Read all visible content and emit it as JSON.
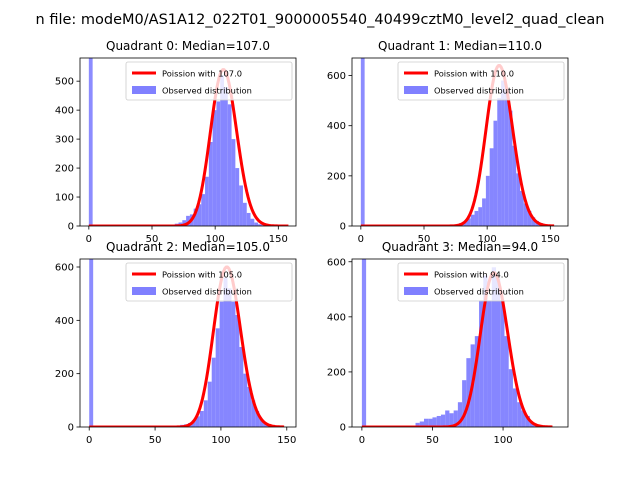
{
  "suptitle": "n file: modeM0/AS1A12_022T01_9000005540_40499cztM0_level2_quad_clean",
  "colors": {
    "hist": "#8080ff",
    "line": "#ff0000",
    "spike": "#8c8cff"
  },
  "chart_data": [
    {
      "type": "histogram",
      "title": "Quadrant 0: Median=107.0",
      "xlim": [
        -7,
        164
      ],
      "ylim": [
        0,
        580
      ],
      "xticks": [
        0,
        50,
        100,
        150
      ],
      "yticks": [
        0,
        100,
        200,
        300,
        400,
        500
      ],
      "legend": {
        "placement": "top-right",
        "line_label": "Poission with 107.0",
        "hist_label": "Observed distribution"
      },
      "poisson_mean": 107.0,
      "poisson_scale": 540,
      "poisson_xmax": 158,
      "spike": {
        "x": 0,
        "value": 580
      },
      "bins": {
        "start": 56,
        "width": 3,
        "counts": [
          3,
          3,
          2,
          5,
          8,
          12,
          20,
          35,
          40,
          60,
          75,
          110,
          170,
          290,
          400,
          430,
          520,
          480,
          420,
          300,
          200,
          140,
          80,
          45,
          25,
          12,
          6,
          3,
          2,
          1,
          1,
          1,
          1
        ]
      }
    },
    {
      "type": "histogram",
      "title": "Quadrant 1: Median=110.0",
      "xlim": [
        -7,
        164
      ],
      "ylim": [
        0,
        670
      ],
      "xticks": [
        0,
        50,
        100,
        150
      ],
      "yticks": [
        0,
        200,
        400,
        600
      ],
      "legend": {
        "placement": "top-right",
        "line_label": "Poission with 110.0",
        "hist_label": "Observed distribution"
      },
      "poisson_mean": 110.0,
      "poisson_scale": 640,
      "poisson_xmax": 153,
      "spike": {
        "x": 0,
        "value": 670
      },
      "bins": {
        "start": 66,
        "width": 3,
        "counts": [
          3,
          4,
          5,
          8,
          12,
          18,
          30,
          45,
          60,
          75,
          110,
          200,
          310,
          420,
          510,
          580,
          540,
          460,
          320,
          210,
          140,
          90,
          60,
          35,
          20,
          12,
          6,
          3,
          2,
          1
        ]
      }
    },
    {
      "type": "histogram",
      "title": "Quadrant 2: Median=105.0",
      "xlim": [
        -7,
        157
      ],
      "ylim": [
        0,
        630
      ],
      "xticks": [
        0,
        50,
        100,
        150
      ],
      "yticks": [
        0,
        200,
        400,
        600
      ],
      "legend": {
        "placement": "top-right",
        "line_label": "Poission with 105.0",
        "hist_label": "Observed distribution"
      },
      "poisson_mean": 105.0,
      "poisson_scale": 600,
      "poisson_xmax": 148,
      "spike": {
        "x": 0,
        "value": 630
      },
      "bins": {
        "start": 60,
        "width": 3,
        "counts": [
          2,
          3,
          5,
          8,
          10,
          15,
          25,
          40,
          60,
          100,
          170,
          260,
          370,
          470,
          560,
          520,
          470,
          420,
          300,
          200,
          150,
          100,
          60,
          30,
          15,
          8,
          4,
          2
        ]
      }
    },
    {
      "type": "histogram",
      "title": "Quadrant 3: Median=94.0",
      "xlim": [
        -7,
        146
      ],
      "ylim": [
        0,
        610
      ],
      "xticks": [
        0,
        50,
        100
      ],
      "yticks": [
        0,
        200,
        400,
        600
      ],
      "legend": {
        "placement": "top-right",
        "line_label": "Poission with 94.0",
        "hist_label": "Observed distribution"
      },
      "poisson_mean": 94.0,
      "poisson_scale": 560,
      "poisson_xmax": 135,
      "spike": {
        "x": 0,
        "value": 610
      },
      "bins": {
        "start": 38,
        "width": 3,
        "counts": [
          15,
          20,
          30,
          30,
          35,
          40,
          45,
          60,
          50,
          60,
          90,
          170,
          250,
          300,
          330,
          460,
          550,
          460,
          580,
          540,
          460,
          330,
          210,
          140,
          90,
          60,
          40,
          15,
          8,
          4
        ]
      }
    }
  ]
}
